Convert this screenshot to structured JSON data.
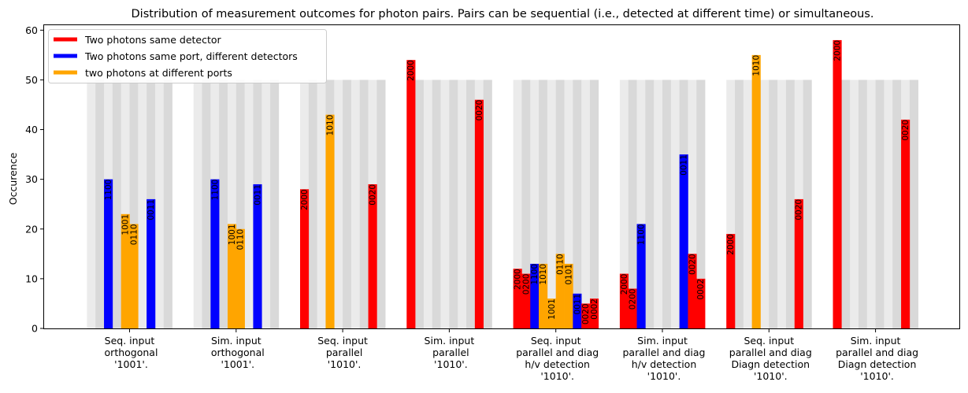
{
  "chart_data": {
    "type": "bar",
    "title": "Distribution of measurement outcomes for photon pairs. Pairs can be sequential (i.e., detected at different time) or simultaneous.",
    "xlabel": "",
    "ylabel": "Occurence",
    "ylim": [
      0,
      61
    ],
    "yticks": [
      0,
      10,
      20,
      30,
      40,
      50,
      60
    ],
    "background_level": 50,
    "slots_per_group": 10,
    "categories": [
      "Seq. input\n orthogonal\n '1001'.",
      "Sim. input\n orthogonal\n '1001'.",
      "Seq. input\n parallel\n '1010'.",
      "Sim. input\n parallel\n '1010'.",
      "Seq. input\n parallel and diag\n h/v detection\n '1010'.",
      "Sim. input\n parallel and diag\n h/v detection\n '1010'.",
      "Seq. input\n parallel and diag\n Diagn detection\n '1010'.",
      "Sim. input\n parallel and diag\n Diagn detection\n '1010'."
    ],
    "legend": {
      "placement": "top-left",
      "entries": [
        {
          "label": "Two photons same detector",
          "color": "#ff0000"
        },
        {
          "label": "Two photons same port, different detectors",
          "color": "#0000ff"
        },
        {
          "label": "two photons at different ports",
          "color": "#ffa500"
        }
      ]
    },
    "colors": {
      "same_detector": "#ff0000",
      "same_port": "#0000ff",
      "different_ports": "#ffa500",
      "stripe_light": "#ebebeb",
      "stripe_dark": "#d9d9d9"
    },
    "groups": [
      {
        "bars": [
          {
            "slot": 2,
            "value": 30,
            "label": "1100",
            "kind": "same_port"
          },
          {
            "slot": 4,
            "value": 23,
            "label": "1001",
            "kind": "different_ports"
          },
          {
            "slot": 5,
            "value": 21,
            "label": "0110",
            "kind": "different_ports"
          },
          {
            "slot": 7,
            "value": 26,
            "label": "0011",
            "kind": "same_port"
          }
        ]
      },
      {
        "bars": [
          {
            "slot": 2,
            "value": 30,
            "label": "1100",
            "kind": "same_port"
          },
          {
            "slot": 4,
            "value": 21,
            "label": "1001",
            "kind": "different_ports"
          },
          {
            "slot": 5,
            "value": 20,
            "label": "0110",
            "kind": "different_ports"
          },
          {
            "slot": 7,
            "value": 29,
            "label": "0011",
            "kind": "same_port"
          }
        ]
      },
      {
        "bars": [
          {
            "slot": 0,
            "value": 28,
            "label": "2000",
            "kind": "same_detector"
          },
          {
            "slot": 3,
            "value": 43,
            "label": "1010",
            "kind": "different_ports"
          },
          {
            "slot": 8,
            "value": 29,
            "label": "0020",
            "kind": "same_detector"
          }
        ]
      },
      {
        "bars": [
          {
            "slot": 0,
            "value": 54,
            "label": "2000",
            "kind": "same_detector"
          },
          {
            "slot": 8,
            "value": 46,
            "label": "0020",
            "kind": "same_detector"
          }
        ]
      },
      {
        "bars": [
          {
            "slot": 0,
            "value": 12,
            "label": "2000",
            "kind": "same_detector"
          },
          {
            "slot": 1,
            "value": 11,
            "label": "0200",
            "kind": "same_detector"
          },
          {
            "slot": 2,
            "value": 13,
            "label": "1100",
            "kind": "same_port"
          },
          {
            "slot": 3,
            "value": 13,
            "label": "1010",
            "kind": "different_ports"
          },
          {
            "slot": 4,
            "value": 6,
            "label": "1001",
            "kind": "different_ports"
          },
          {
            "slot": 5,
            "value": 15,
            "label": "0110",
            "kind": "different_ports"
          },
          {
            "slot": 6,
            "value": 13,
            "label": "0101",
            "kind": "different_ports"
          },
          {
            "slot": 7,
            "value": 7,
            "label": "0011",
            "kind": "same_port"
          },
          {
            "slot": 8,
            "value": 5,
            "label": "0020",
            "kind": "same_detector"
          },
          {
            "slot": 9,
            "value": 6,
            "label": "0002",
            "kind": "same_detector"
          }
        ]
      },
      {
        "bars": [
          {
            "slot": 0,
            "value": 11,
            "label": "2000",
            "kind": "same_detector"
          },
          {
            "slot": 1,
            "value": 8,
            "label": "0200",
            "kind": "same_detector"
          },
          {
            "slot": 2,
            "value": 21,
            "label": "1100",
            "kind": "same_port"
          },
          {
            "slot": 7,
            "value": 35,
            "label": "0011",
            "kind": "same_port"
          },
          {
            "slot": 8,
            "value": 15,
            "label": "0020",
            "kind": "same_detector"
          },
          {
            "slot": 9,
            "value": 10,
            "label": "0002",
            "kind": "same_detector"
          }
        ]
      },
      {
        "bars": [
          {
            "slot": 0,
            "value": 19,
            "label": "2000",
            "kind": "same_detector"
          },
          {
            "slot": 3,
            "value": 55,
            "label": "1010",
            "kind": "different_ports"
          },
          {
            "slot": 8,
            "value": 26,
            "label": "0020",
            "kind": "same_detector"
          }
        ]
      },
      {
        "bars": [
          {
            "slot": 0,
            "value": 58,
            "label": "2000",
            "kind": "same_detector"
          },
          {
            "slot": 8,
            "value": 42,
            "label": "0020",
            "kind": "same_detector"
          }
        ]
      }
    ]
  }
}
